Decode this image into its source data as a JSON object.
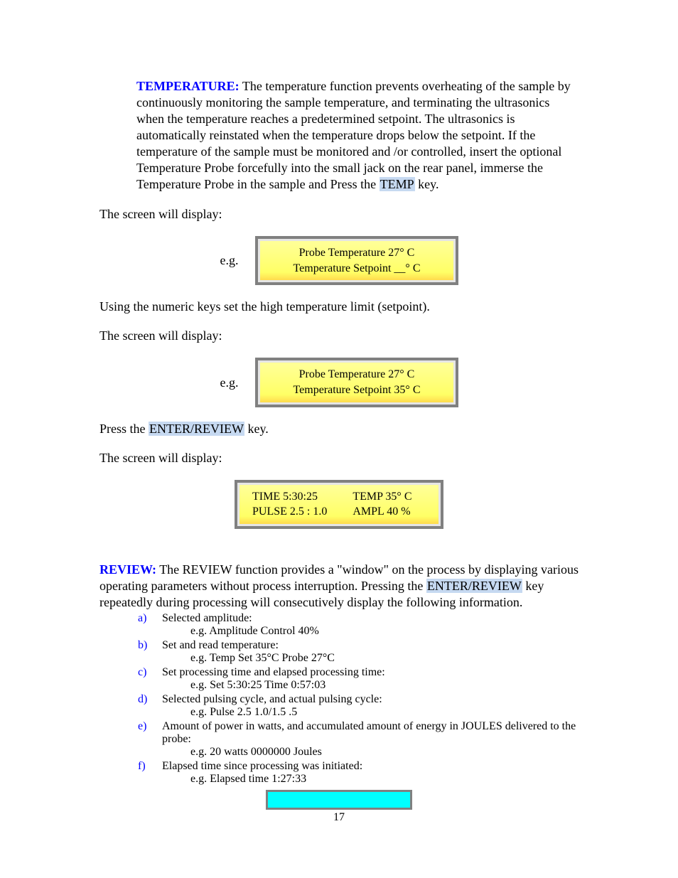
{
  "temperature": {
    "label": "TEMPERATURE:",
    "body_before_key": "The temperature function prevents overheating of the sample by continuously monitoring the sample temperature, and terminating the ultrasonics when the temperature reaches a predetermined setpoint. The ultrasonics is automatically reinstated when the temperature drops below the setpoint. If the temperature of the sample must be monitored and /or controlled, insert the optional Temperature Probe forcefully into the small jack on the rear panel, immerse the Temperature Probe in the sample and Press the ",
    "temp_key": "TEMP",
    "body_after_key": " key."
  },
  "screen_will_display": "The screen will display:",
  "eg": "e.g.",
  "lcd1": {
    "line1": "Probe Temperature 27° C",
    "line2": "Temperature Setpoint __° C"
  },
  "setpoint_line": "Using the numeric keys set the high temperature limit (setpoint).",
  "lcd2": {
    "line1": "Probe Temperature 27° C",
    "line2": "Temperature Setpoint 35°  C"
  },
  "press_enter": {
    "before": "Press the ",
    "key": "ENTER/REVIEW",
    "after": " key."
  },
  "lcd3": {
    "c1l1": "TIME  5:30:25",
    "c1l2": "PULSE 2.5 : 1.0",
    "c2l1": "TEMP  35° C",
    "c2l2": "AMPL   40 %"
  },
  "review": {
    "label": "REVIEW:",
    "body_before_key": " The REVIEW function provides a \"window\" on the process by displaying various operating parameters without process interruption. Pressing the ",
    "key": "ENTER/REVIEW",
    "body_after_key": " key repeatedly during processing will consecutively display the following information."
  },
  "list": {
    "a": {
      "letter": "a)",
      "text": "Selected amplitude:",
      "eg": "e.g. Amplitude Control 40%"
    },
    "b": {
      "letter": "b)",
      "text": "Set and read temperature:",
      "eg": "e.g. Temp Set 35°C Probe 27°C"
    },
    "c": {
      "letter": "c)",
      "text": "Set processing time and elapsed processing time:",
      "eg": "e.g. Set 5:30:25     Time 0:57:03"
    },
    "d": {
      "letter": "d)",
      "text": "Selected pulsing cycle, and actual pulsing cycle:",
      "eg": "e.g. Pulse 2.5 1.0/1.5 .5"
    },
    "e": {
      "letter": "e)",
      "text": "Amount of power in watts, and accumulated amount of energy in JOULES delivered to the probe:",
      "eg": "e.g. 20 watts  0000000 Joules"
    },
    "f": {
      "letter": "f)",
      "text": "Elapsed time since processing was initiated:",
      "eg": "e.g. Elapsed time 1:27:33"
    }
  },
  "page_number": "17",
  "colors": {
    "label_blue": "#0000ff",
    "key_highlight": "#c6d9f1",
    "lcd_border": "#808080",
    "lcd_bg_top": "#ffff99",
    "lcd_bg_bottom": "#ffdb4d",
    "cyan": "#00ffff"
  }
}
